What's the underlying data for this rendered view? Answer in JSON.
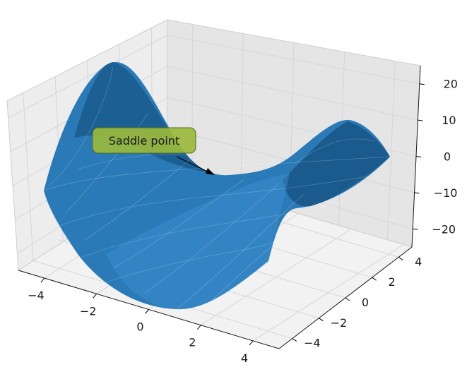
{
  "chart_data": {
    "type": "surface",
    "function": "z = x^2 - y^2",
    "grid": true,
    "surface_color": "#1f77b4",
    "x_ticks": [
      -4,
      -2,
      0,
      2,
      4
    ],
    "y_ticks": [
      -4,
      -2,
      0,
      2,
      4
    ],
    "z_ticks": [
      20,
      10,
      0,
      -10,
      -20
    ],
    "x_tick_labels": [
      "−4",
      "−2",
      "0",
      "2",
      "4"
    ],
    "y_tick_labels": [
      "−4",
      "−2",
      "0",
      "2",
      "4"
    ],
    "z_tick_labels": [
      "20",
      "10",
      "0",
      "−10",
      "−20"
    ],
    "xlim": [
      -5,
      5
    ],
    "ylim": [
      -5,
      5
    ],
    "zlim": [
      -25,
      25
    ],
    "annotation": {
      "text": "Saddle point",
      "target": [
        0,
        0,
        0
      ],
      "box_color": "#9ab83c"
    }
  }
}
